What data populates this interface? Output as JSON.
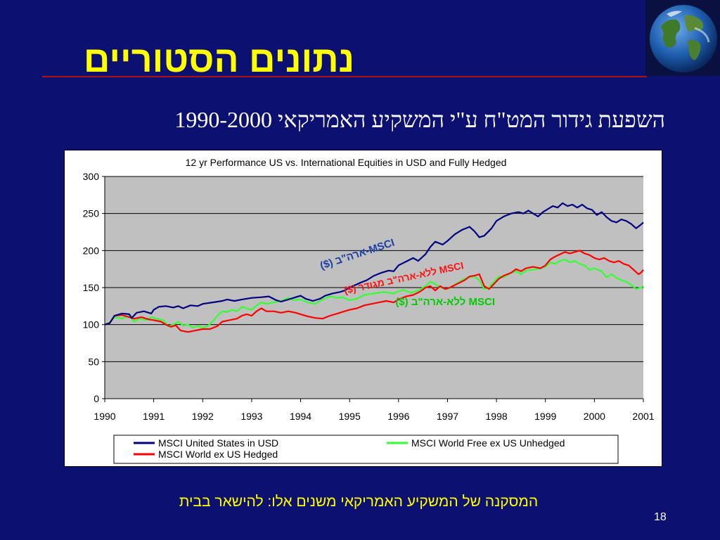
{
  "slide": {
    "title": "נתונים הסטוריים",
    "subtitle": "השפעת גידור המט\"ח ע\"י המשקיע האמריקאי 1990-2000",
    "conclusion": "המסקנה של המשקיע האמריקאי משנים אלו: להישאר בבית",
    "page_number": "18",
    "globe_icon": "earth-globe-icon"
  },
  "chart_data": {
    "type": "line",
    "title": "12 yr Performance US vs. International Equities in USD and Fully Hedged",
    "xlim": [
      1990,
      2001
    ],
    "ylim": [
      0,
      300
    ],
    "x_ticks": [
      "1990",
      "1991",
      "1992",
      "1993",
      "1994",
      "1995",
      "1996",
      "1997",
      "1998",
      "1999",
      "2000",
      "2001"
    ],
    "y_ticks": [
      0,
      50,
      100,
      150,
      200,
      250,
      300
    ],
    "grid": true,
    "legend_position": "bottom",
    "plot_background": "#c0c0c0",
    "series": [
      {
        "name": "MSCI United States in USD",
        "color": "#000080",
        "annotation": "MSCI-ארה\"ב ($)",
        "points": [
          [
            1990.0,
            100
          ],
          [
            1990.1,
            102
          ],
          [
            1990.2,
            112
          ],
          [
            1990.35,
            115
          ],
          [
            1990.5,
            114
          ],
          [
            1990.55,
            109
          ],
          [
            1990.65,
            116
          ],
          [
            1990.8,
            118
          ],
          [
            1990.95,
            115
          ],
          [
            1991.0,
            120
          ],
          [
            1991.1,
            124
          ],
          [
            1991.25,
            125
          ],
          [
            1991.4,
            123
          ],
          [
            1991.5,
            125
          ],
          [
            1991.6,
            122
          ],
          [
            1991.75,
            126
          ],
          [
            1991.9,
            125
          ],
          [
            1992.0,
            128
          ],
          [
            1992.2,
            130
          ],
          [
            1992.4,
            132
          ],
          [
            1992.5,
            134
          ],
          [
            1992.65,
            132
          ],
          [
            1992.8,
            134
          ],
          [
            1993.0,
            136
          ],
          [
            1993.2,
            137
          ],
          [
            1993.35,
            138
          ],
          [
            1993.5,
            133
          ],
          [
            1993.6,
            131
          ],
          [
            1993.75,
            134
          ],
          [
            1993.9,
            137
          ],
          [
            1994.0,
            139
          ],
          [
            1994.1,
            135
          ],
          [
            1994.25,
            132
          ],
          [
            1994.4,
            135
          ],
          [
            1994.5,
            139
          ],
          [
            1994.65,
            142
          ],
          [
            1994.8,
            144
          ],
          [
            1994.9,
            146
          ],
          [
            1995.0,
            150
          ],
          [
            1995.2,
            156
          ],
          [
            1995.35,
            160
          ],
          [
            1995.5,
            166
          ],
          [
            1995.65,
            170
          ],
          [
            1995.8,
            173
          ],
          [
            1995.9,
            172
          ],
          [
            1996.0,
            180
          ],
          [
            1996.15,
            185
          ],
          [
            1996.3,
            190
          ],
          [
            1996.4,
            186
          ],
          [
            1996.55,
            195
          ],
          [
            1996.65,
            205
          ],
          [
            1996.75,
            212
          ],
          [
            1996.9,
            208
          ],
          [
            1997.0,
            213
          ],
          [
            1997.15,
            222
          ],
          [
            1997.3,
            228
          ],
          [
            1997.45,
            232
          ],
          [
            1997.55,
            226
          ],
          [
            1997.65,
            218
          ],
          [
            1997.75,
            220
          ],
          [
            1997.9,
            230
          ],
          [
            1998.0,
            240
          ],
          [
            1998.15,
            246
          ],
          [
            1998.3,
            250
          ],
          [
            1998.45,
            252
          ],
          [
            1998.55,
            250
          ],
          [
            1998.65,
            254
          ],
          [
            1998.75,
            250
          ],
          [
            1998.85,
            246
          ],
          [
            1998.95,
            252
          ],
          [
            1999.05,
            256
          ],
          [
            1999.15,
            260
          ],
          [
            1999.25,
            258
          ],
          [
            1999.35,
            264
          ],
          [
            1999.45,
            260
          ],
          [
            1999.55,
            262
          ],
          [
            1999.65,
            258
          ],
          [
            1999.75,
            262
          ],
          [
            1999.85,
            257
          ],
          [
            1999.95,
            255
          ],
          [
            2000.05,
            248
          ],
          [
            2000.15,
            252
          ],
          [
            2000.25,
            245
          ],
          [
            2000.35,
            240
          ],
          [
            2000.45,
            238
          ],
          [
            2000.55,
            242
          ],
          [
            2000.65,
            240
          ],
          [
            2000.75,
            236
          ],
          [
            2000.85,
            230
          ],
          [
            2000.95,
            235
          ],
          [
            2001.0,
            238
          ]
        ]
      },
      {
        "name": "MSCI World Free ex US Unhedged",
        "color": "#33ff33",
        "annotation": "MSCI ללא-ארה\"ב ($)",
        "points": [
          [
            1990.0,
            100
          ],
          [
            1990.1,
            103
          ],
          [
            1990.2,
            110
          ],
          [
            1990.35,
            108
          ],
          [
            1990.5,
            112
          ],
          [
            1990.6,
            104
          ],
          [
            1990.7,
            108
          ],
          [
            1990.85,
            106
          ],
          [
            1990.95,
            110
          ],
          [
            1991.05,
            108
          ],
          [
            1991.2,
            106
          ],
          [
            1991.3,
            98
          ],
          [
            1991.4,
            100
          ],
          [
            1991.5,
            104
          ],
          [
            1991.6,
            99
          ],
          [
            1991.7,
            100
          ],
          [
            1991.8,
            96
          ],
          [
            1991.9,
            98
          ],
          [
            1992.0,
            96
          ],
          [
            1992.1,
            98
          ],
          [
            1992.2,
            104
          ],
          [
            1992.3,
            112
          ],
          [
            1992.4,
            118
          ],
          [
            1992.5,
            117
          ],
          [
            1992.6,
            120
          ],
          [
            1992.7,
            118
          ],
          [
            1992.8,
            124
          ],
          [
            1992.9,
            122
          ],
          [
            1993.0,
            120
          ],
          [
            1993.1,
            126
          ],
          [
            1993.2,
            130
          ],
          [
            1993.3,
            128
          ],
          [
            1993.45,
            130
          ],
          [
            1993.6,
            132
          ],
          [
            1993.75,
            136
          ],
          [
            1993.85,
            133
          ],
          [
            1994.0,
            134
          ],
          [
            1994.15,
            130
          ],
          [
            1994.3,
            128
          ],
          [
            1994.45,
            134
          ],
          [
            1994.6,
            138
          ],
          [
            1994.75,
            136
          ],
          [
            1994.85,
            137
          ],
          [
            1995.0,
            133
          ],
          [
            1995.15,
            135
          ],
          [
            1995.3,
            140
          ],
          [
            1995.5,
            142
          ],
          [
            1995.7,
            144
          ],
          [
            1995.9,
            142
          ],
          [
            1996.0,
            145
          ],
          [
            1996.1,
            147
          ],
          [
            1996.25,
            143
          ],
          [
            1996.4,
            146
          ],
          [
            1996.55,
            152
          ],
          [
            1996.65,
            158
          ],
          [
            1996.75,
            155
          ],
          [
            1996.85,
            150
          ],
          [
            1997.0,
            148
          ],
          [
            1997.1,
            152
          ],
          [
            1997.2,
            156
          ],
          [
            1997.35,
            162
          ],
          [
            1997.45,
            164
          ],
          [
            1997.55,
            165
          ],
          [
            1997.65,
            160
          ],
          [
            1997.75,
            148
          ],
          [
            1997.85,
            150
          ],
          [
            1997.95,
            158
          ],
          [
            1998.05,
            165
          ],
          [
            1998.15,
            164
          ],
          [
            1998.3,
            170
          ],
          [
            1998.4,
            172
          ],
          [
            1998.5,
            168
          ],
          [
            1998.6,
            173
          ],
          [
            1998.75,
            174
          ],
          [
            1998.9,
            176
          ],
          [
            1999.0,
            178
          ],
          [
            1999.1,
            184
          ],
          [
            1999.2,
            182
          ],
          [
            1999.3,
            186
          ],
          [
            1999.4,
            188
          ],
          [
            1999.5,
            184
          ],
          [
            1999.6,
            186
          ],
          [
            1999.7,
            182
          ],
          [
            1999.8,
            180
          ],
          [
            1999.9,
            174
          ],
          [
            2000.0,
            176
          ],
          [
            2000.15,
            172
          ],
          [
            2000.25,
            164
          ],
          [
            2000.35,
            168
          ],
          [
            2000.45,
            163
          ],
          [
            2000.55,
            160
          ],
          [
            2000.65,
            158
          ],
          [
            2000.75,
            154
          ],
          [
            2000.85,
            148
          ],
          [
            2000.95,
            150
          ],
          [
            2001.0,
            152
          ]
        ]
      },
      {
        "name": "MSCI World ex US Hedged",
        "color": "#ff0000",
        "annotation": "MSCI ללא-ארה\"ב מגודר ($)",
        "points": [
          [
            1990.0,
            100
          ],
          [
            1990.1,
            102
          ],
          [
            1990.2,
            112
          ],
          [
            1990.35,
            113
          ],
          [
            1990.5,
            110
          ],
          [
            1990.6,
            108
          ],
          [
            1990.75,
            110
          ],
          [
            1990.9,
            107
          ],
          [
            1991.0,
            106
          ],
          [
            1991.15,
            104
          ],
          [
            1991.25,
            100
          ],
          [
            1991.35,
            97
          ],
          [
            1991.45,
            99
          ],
          [
            1991.55,
            92
          ],
          [
            1991.7,
            90
          ],
          [
            1991.85,
            92
          ],
          [
            1992.0,
            94
          ],
          [
            1992.15,
            94
          ],
          [
            1992.3,
            98
          ],
          [
            1992.4,
            104
          ],
          [
            1992.55,
            106
          ],
          [
            1992.7,
            108
          ],
          [
            1992.8,
            112
          ],
          [
            1992.9,
            114
          ],
          [
            1993.0,
            112
          ],
          [
            1993.1,
            118
          ],
          [
            1993.2,
            122
          ],
          [
            1993.3,
            118
          ],
          [
            1993.45,
            118
          ],
          [
            1993.6,
            116
          ],
          [
            1993.75,
            118
          ],
          [
            1993.9,
            116
          ],
          [
            1994.0,
            114
          ],
          [
            1994.15,
            111
          ],
          [
            1994.3,
            109
          ],
          [
            1994.45,
            108
          ],
          [
            1994.6,
            112
          ],
          [
            1994.75,
            115
          ],
          [
            1994.9,
            118
          ],
          [
            1995.0,
            120
          ],
          [
            1995.15,
            122
          ],
          [
            1995.3,
            126
          ],
          [
            1995.45,
            128
          ],
          [
            1995.6,
            130
          ],
          [
            1995.75,
            132
          ],
          [
            1995.9,
            130
          ],
          [
            1996.0,
            134
          ],
          [
            1996.15,
            138
          ],
          [
            1996.3,
            140
          ],
          [
            1996.45,
            145
          ],
          [
            1996.55,
            150
          ],
          [
            1996.65,
            152
          ],
          [
            1996.75,
            146
          ],
          [
            1996.85,
            152
          ],
          [
            1996.95,
            148
          ],
          [
            1997.05,
            150
          ],
          [
            1997.2,
            155
          ],
          [
            1997.35,
            160
          ],
          [
            1997.45,
            165
          ],
          [
            1997.55,
            166
          ],
          [
            1997.65,
            168
          ],
          [
            1997.75,
            152
          ],
          [
            1997.85,
            148
          ],
          [
            1997.95,
            155
          ],
          [
            1998.05,
            162
          ],
          [
            1998.15,
            166
          ],
          [
            1998.3,
            170
          ],
          [
            1998.4,
            175
          ],
          [
            1998.5,
            172
          ],
          [
            1998.6,
            176
          ],
          [
            1998.75,
            178
          ],
          [
            1998.9,
            176
          ],
          [
            1999.0,
            180
          ],
          [
            1999.1,
            188
          ],
          [
            1999.2,
            192
          ],
          [
            1999.3,
            195
          ],
          [
            1999.4,
            198
          ],
          [
            1999.5,
            196
          ],
          [
            1999.6,
            198
          ],
          [
            1999.7,
            200
          ],
          [
            1999.8,
            196
          ],
          [
            1999.9,
            194
          ],
          [
            2000.0,
            190
          ],
          [
            2000.1,
            188
          ],
          [
            2000.2,
            190
          ],
          [
            2000.3,
            186
          ],
          [
            2000.4,
            184
          ],
          [
            2000.5,
            186
          ],
          [
            2000.6,
            182
          ],
          [
            2000.7,
            180
          ],
          [
            2000.8,
            174
          ],
          [
            2000.9,
            168
          ],
          [
            2000.95,
            170
          ],
          [
            2001.0,
            174
          ]
        ]
      }
    ]
  }
}
